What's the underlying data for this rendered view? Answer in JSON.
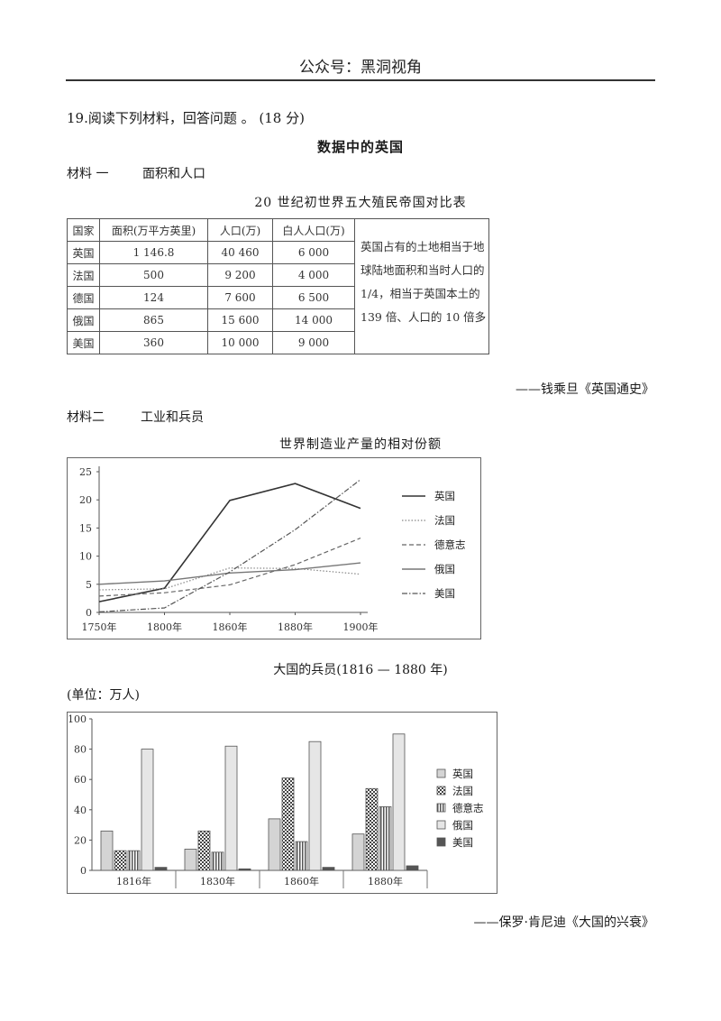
{
  "header": {
    "title": "公众号：黑洞视角"
  },
  "question": {
    "heading": "19.阅读下列材料，回答问题 。 (18 分)",
    "title": "数据中的英国"
  },
  "material1": {
    "label": "材料 一",
    "topic": "面积和人口",
    "table_title": "20 世纪初世界五大殖民帝国对比表",
    "headers": [
      "国家",
      "面积(万平方英里)",
      "人口(万)",
      "白人人口(万)"
    ],
    "rows": [
      [
        "英国",
        "1 146.8",
        "40 460",
        "6 000"
      ],
      [
        "法国",
        "500",
        "9 200",
        "4 000"
      ],
      [
        "德国",
        "124",
        "7 600",
        "6 500"
      ],
      [
        "俄国",
        "865",
        "15 600",
        "14 000"
      ],
      [
        "美国",
        "360",
        "10 000",
        "9 000"
      ]
    ],
    "note": "英国占有的土地相当于地球陆地面积和当时人口的 1/4，相当于英国本土的 139 倍、人口的 10 倍多",
    "source": "——钱乘旦《英国通史》"
  },
  "material2": {
    "label": "材料二",
    "topic": "工业和兵员",
    "source": "——保罗·肯尼迪《大国的兴衰》"
  },
  "colors": {
    "britain": "#333333",
    "france": "#888888",
    "germany": "#666666",
    "russia": "#777777",
    "usa": "#555555"
  },
  "chart_data": [
    {
      "type": "line",
      "title": "世界制造业产量的相对份额",
      "x": [
        "1750年",
        "1800年",
        "1860年",
        "1880年",
        "1900年"
      ],
      "ylim": [
        0,
        25
      ],
      "yticks": [
        0,
        5,
        10,
        15,
        20,
        25
      ],
      "grid": false,
      "legend": "right",
      "series": [
        {
          "name": "英国",
          "values": [
            1.9,
            4.3,
            19.9,
            22.9,
            18.5
          ]
        },
        {
          "name": "法国",
          "values": [
            4.0,
            4.2,
            7.9,
            7.8,
            6.8
          ]
        },
        {
          "name": "德意志",
          "values": [
            2.9,
            3.5,
            4.9,
            8.5,
            13.2
          ]
        },
        {
          "name": "俄国",
          "values": [
            5.0,
            5.6,
            7.0,
            7.6,
            8.8
          ]
        },
        {
          "name": "美国",
          "values": [
            0.1,
            0.8,
            7.2,
            14.7,
            23.6
          ]
        }
      ]
    },
    {
      "type": "bar",
      "title": "大国的兵员(1816 — 1880 年)",
      "unit_label": "(单位：万人)",
      "categories": [
        "1816年",
        "1830年",
        "1860年",
        "1880年"
      ],
      "ylim": [
        0,
        100
      ],
      "yticks": [
        0,
        20,
        40,
        60,
        80,
        100
      ],
      "grid": false,
      "legend": "right",
      "series": [
        {
          "name": "英国",
          "values": [
            26,
            14,
            34,
            24
          ]
        },
        {
          "name": "法国",
          "values": [
            13,
            26,
            61,
            54
          ]
        },
        {
          "name": "德意志",
          "values": [
            13,
            12,
            19,
            42
          ]
        },
        {
          "name": "俄国",
          "values": [
            80,
            82,
            85,
            90
          ]
        },
        {
          "name": "美国",
          "values": [
            2,
            1,
            2,
            3
          ]
        }
      ]
    }
  ]
}
